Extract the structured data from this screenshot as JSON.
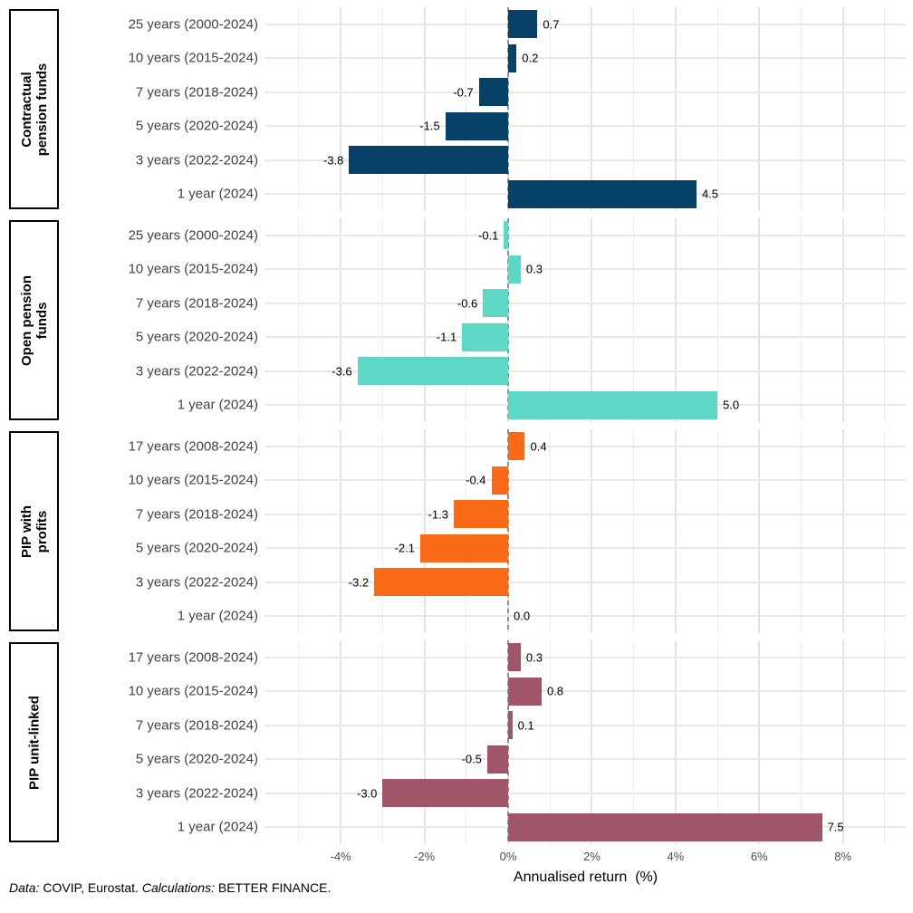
{
  "chart_data": {
    "type": "bar",
    "orientation": "horizontal",
    "title": "",
    "xlabel": "Annualised return  (%)",
    "ylabel": "",
    "xlim": [
      -5.8,
      9.5
    ],
    "x_ticks": [
      {
        "value": -4,
        "label": "-4%"
      },
      {
        "value": -2,
        "label": "-2%"
      },
      {
        "value": 0,
        "label": "0%"
      },
      {
        "value": 2,
        "label": "2%"
      },
      {
        "value": 4,
        "label": "4%"
      },
      {
        "value": 6,
        "label": "6%"
      },
      {
        "value": 8,
        "label": "8%"
      }
    ],
    "minor_tick_values": [
      -5,
      -3,
      -1,
      1,
      3,
      5,
      7,
      9
    ],
    "grid": true,
    "zero_line": {
      "style": "dashed",
      "color": "#8f8f8f"
    },
    "panels": [
      {
        "label": "Contractual pension funds",
        "label_lines": [
          "Contractual",
          "pension funds"
        ],
        "color": "#084168",
        "categories": [
          "25 years (2000-2024)",
          "10 years (2015-2024)",
          "7 years (2018-2024)",
          "5 years (2020-2024)",
          "3 years (2022-2024)",
          "1 year (2024)"
        ],
        "values": [
          0.7,
          0.2,
          -0.7,
          -1.5,
          -3.8,
          4.5
        ],
        "value_labels": [
          "0.7",
          "0.2",
          "-0.7",
          "-1.5",
          "-3.8",
          "4.5"
        ]
      },
      {
        "label": "Open pension funds",
        "label_lines": [
          "Open pension",
          "funds"
        ],
        "color": "#5fd7c5",
        "categories": [
          "25 years (2000-2024)",
          "10 years (2015-2024)",
          "7 years (2018-2024)",
          "5 years (2020-2024)",
          "3 years (2022-2024)",
          "1 year (2024)"
        ],
        "values": [
          -0.1,
          0.3,
          -0.6,
          -1.1,
          -3.6,
          5.0
        ],
        "value_labels": [
          "-0.1",
          "0.3",
          "-0.6",
          "-1.1",
          "-3.6",
          "5.0"
        ]
      },
      {
        "label": "PIP with profits",
        "label_lines": [
          "PIP with",
          "profits"
        ],
        "color": "#fb6a17",
        "categories": [
          "17 years (2008-2024)",
          "10 years (2015-2024)",
          "7 years (2018-2024)",
          "5 years (2020-2024)",
          "3 years (2022-2024)",
          "1 year (2024)"
        ],
        "values": [
          0.4,
          -0.4,
          -1.3,
          -2.1,
          -3.2,
          0.0
        ],
        "value_labels": [
          "0.4",
          "-0.4",
          "-1.3",
          "-2.1",
          "-3.2",
          "0.0"
        ]
      },
      {
        "label": "PIP unit-linked",
        "label_lines": [
          "PIP unit-linked"
        ],
        "color": "#a05568",
        "categories": [
          "17 years (2008-2024)",
          "10 years (2015-2024)",
          "7 years (2018-2024)",
          "5 years (2020-2024)",
          "3 years (2022-2024)",
          "1 year (2024)"
        ],
        "values": [
          0.3,
          0.8,
          0.1,
          -0.5,
          -3.0,
          7.5
        ],
        "value_labels": [
          "0.3",
          "0.8",
          "0.1",
          "-0.5",
          "-3.0",
          "7.5"
        ]
      }
    ],
    "caption_segments": [
      {
        "text": "Data:",
        "italic": true
      },
      {
        "text": " COVIP, Eurostat. ",
        "italic": false
      },
      {
        "text": "Calculations:",
        "italic": true
      },
      {
        "text": " BETTER FINANCE.",
        "italic": false
      }
    ]
  }
}
